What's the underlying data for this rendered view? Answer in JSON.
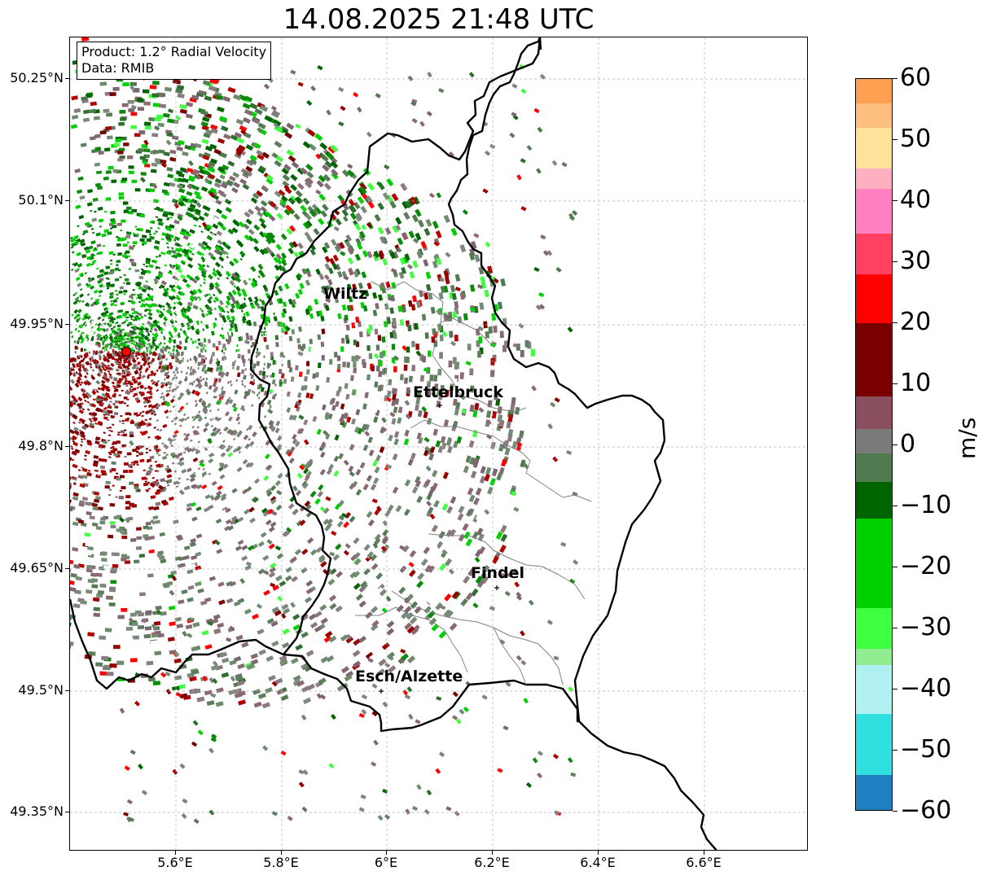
{
  "title": "14.08.2025 21:48 UTC",
  "info": {
    "product": "Product: 1.2° Radial Velocity",
    "source": "Data: RMIB"
  },
  "axes": {
    "lat_labels": [
      "50.25°N",
      "50.1°N",
      "49.95°N",
      "49.8°N",
      "49.65°N",
      "49.5°N",
      "49.35°N"
    ],
    "lon_labels": [
      "5.6°E",
      "5.8°E",
      "6°E",
      "6.2°E",
      "6.4°E",
      "6.6°E"
    ]
  },
  "colorbar": {
    "unit": "m/s",
    "tick_labels": [
      "60",
      "50",
      "40",
      "30",
      "20",
      "10",
      "0",
      "−10",
      "−20",
      "−30",
      "−40",
      "−50",
      "−60"
    ],
    "min": -60,
    "max": 60,
    "colors": {
      "positive_high": "#ff9f50",
      "orange": "#ffbf80",
      "yellow": "#ffe39b",
      "pink_light": "#ffb0c0",
      "pink": "#ff80c0",
      "pink_red": "#ff4060",
      "red": "#ff0000",
      "dark_red": "#7a0000",
      "muted_red": "#8a5060",
      "grey_zero": "#7a7a7a",
      "muted_green": "#4f7a4f",
      "dark_green": "#006400",
      "green": "#00d000",
      "bright_green": "#40ff40",
      "light_green": "#90ee90",
      "light_cyan": "#b0f0f0",
      "cyan": "#30e0e0",
      "blue": "#1f7fc0"
    }
  },
  "radar_site": {
    "color": "#ff0000"
  },
  "cities": [
    {
      "name": "Wiltz"
    },
    {
      "name": "Ettelbruck"
    },
    {
      "name": "Findel"
    },
    {
      "name": "Esch/Alzette"
    }
  ],
  "borders": {
    "national_color": "#000000",
    "district_color": "#808080"
  }
}
